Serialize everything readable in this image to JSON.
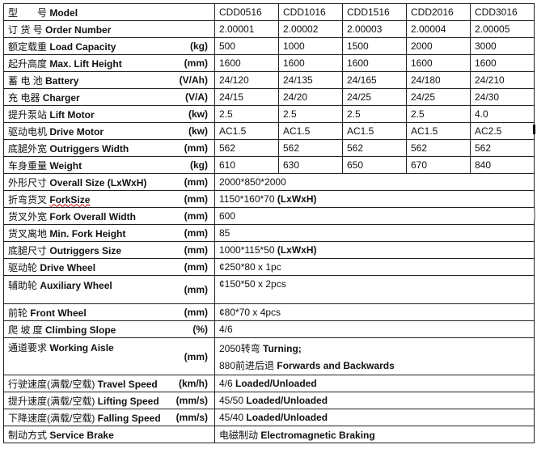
{
  "models": [
    "CDD0516",
    "CDD1016",
    "CDD1516",
    "CDD2016",
    "CDD3016"
  ],
  "rows": [
    {
      "cn": "型　　号",
      "en": "Model",
      "unit": "",
      "values": [
        "CDD0516",
        "CDD1016",
        "CDD1516",
        "CDD2016",
        "CDD3016"
      ]
    },
    {
      "cn": "订 货 号",
      "en": "Order Number",
      "unit": "",
      "values": [
        "2.00001",
        "2.00002",
        "2.00003",
        "2.00004",
        "2.00005"
      ]
    },
    {
      "cn": "额定载重",
      "en": "Load Capacity",
      "unit": "(kg)",
      "values": [
        "500",
        "1000",
        "1500",
        "2000",
        "3000"
      ]
    },
    {
      "cn": "起升高度",
      "en": "Max. Lift Height",
      "unit": "(mm)",
      "values": [
        "1600",
        "1600",
        "1600",
        "1600",
        "1600"
      ]
    },
    {
      "cn": "蓄 电 池",
      "en": " Battery",
      "unit": "(V/Ah)",
      "values": [
        "24/120",
        "24/135",
        "24/165",
        "24/180",
        "24/210"
      ]
    },
    {
      "cn": "充 电器",
      "en": "Charger",
      "unit": "(V/A)",
      "values": [
        "24/15",
        "24/20",
        "24/25",
        "24/25",
        "24/30"
      ]
    },
    {
      "cn": "提升泵站",
      "en": " Lift Motor",
      "unit": "(kw)",
      "values": [
        "2.5",
        "2.5",
        "2.5",
        "2.5",
        "4.0"
      ]
    },
    {
      "cn": "驱动电机",
      "en": "Drive Motor",
      "unit": "(kw)",
      "values": [
        "AC1.5",
        "AC1.5",
        "AC1.5",
        "AC1.5",
        "AC2.5"
      ]
    },
    {
      "cn": "底腿外宽",
      "en": "Outriggers Width",
      "unit": "(mm)",
      "values": [
        "562",
        "562",
        "562",
        "562",
        "562"
      ]
    },
    {
      "cn": "车身重量",
      "en": "Weight",
      "unit": "(kg)",
      "values": [
        "610",
        "630",
        "650",
        "670",
        "840"
      ]
    },
    {
      "cn": "外形尺寸",
      "en": "Overall Size (LxWxH)",
      "unit": "(mm)",
      "span": {
        "plain": "2000*850*2000",
        "bold": ""
      }
    },
    {
      "cn": "折弯货叉",
      "en": "ForkSize",
      "unit": "(mm)",
      "squiggle": true,
      "span": {
        "plain": "1150*160*70 ",
        "bold": "(LxWxH)"
      }
    },
    {
      "cn": "货叉外宽",
      "en": "Fork Overall Width",
      "unit": "(mm)",
      "span": {
        "plain": "600",
        "bold": ""
      }
    },
    {
      "cn": "货叉离地",
      "en": "Min. Fork Height",
      "unit": "(mm)",
      "span": {
        "plain": "85",
        "bold": ""
      }
    },
    {
      "cn": "底腿尺寸",
      "en": " Outriggers Size",
      "unit": "(mm)",
      "span": {
        "plain": "1000*115*50 ",
        "bold": "(LxWxH)"
      }
    },
    {
      "cn": "驱动轮",
      "en": " Drive Wheel",
      "unit": "(mm)",
      "span": {
        "plain": "¢250*80 x 1pc",
        "bold": ""
      }
    },
    {
      "cn": "辅助轮",
      "en": "Auxiliary Wheel",
      "unit": "(mm)",
      "tall": true,
      "span": {
        "plain": "¢150*50 x 2pcs",
        "bold": ""
      }
    },
    {
      "cn": "前轮",
      "en": "Front Wheel",
      "unit": "(mm)",
      "span": {
        "plain": "¢80*70 x 4pcs",
        "bold": ""
      }
    },
    {
      "cn": "爬 坡 度",
      "en": " Climbing Slope",
      "unit": "(%)",
      "span": {
        "plain": "4/6",
        "bold": ""
      }
    },
    {
      "cn": "通道要求",
      "en": " Working Aisle",
      "unit": "(mm)",
      "dbl": true,
      "span": {
        "plain": "2050转弯 ",
        "bold": "Turning;",
        "plain2": "880前进后退 ",
        "bold2": "Forwards and Backwards"
      }
    },
    {
      "cn": "行驶速度(满载/空载)",
      "en": "Travel Speed",
      "unit": "(km/h)",
      "span": {
        "plain": "4/6 ",
        "bold": "Loaded/Unloaded"
      }
    },
    {
      "cn": "提升速度(满载/空载)",
      "en": " Lifting Speed",
      "unit": "(mm/s)",
      "span": {
        "plain": "45/50 ",
        "bold": "Loaded/Unloaded"
      }
    },
    {
      "cn": "下降速度(满载/空载)",
      "en": "Falling Speed",
      "unit": "(mm/s)",
      "span": {
        "plain": "45/40 ",
        "bold": "Loaded/Unloaded"
      }
    },
    {
      "cn": "制动方式",
      "en": "Service Brake",
      "unit": "",
      "span": {
        "plain": "电磁制动 ",
        "bold": "Electromagnetic Braking"
      }
    }
  ]
}
